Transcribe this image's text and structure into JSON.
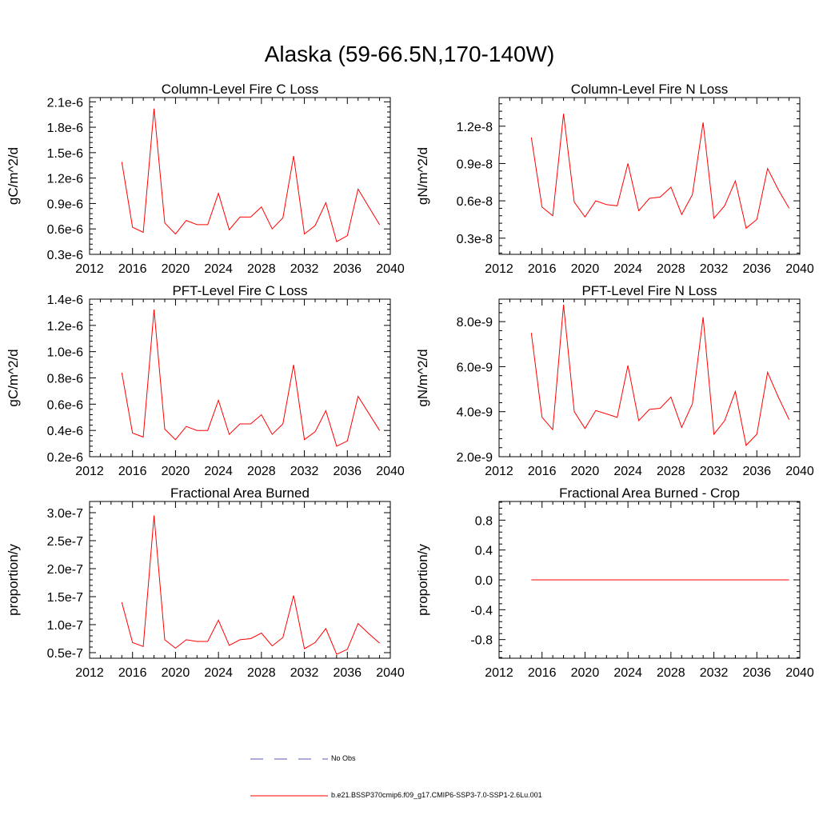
{
  "title": "Alaska (59-66.5N,170-140W)",
  "legend": {
    "obs_label": "No Obs",
    "model_label": "b.e21.BSSP370cmip6.f09_g17.CMIP6-SSP3-7.0-SSP1-2.6Lu.001",
    "obs_color": "#5a5ab4",
    "model_color": "#ff0000"
  },
  "chart_data": [
    {
      "type": "line",
      "title": "Column-Level Fire C Loss",
      "ylabel": "gC/m^2/d",
      "xlim": [
        2012,
        2040
      ],
      "ylim": [
        3e-07,
        2.15e-06
      ],
      "xticks": [
        2012,
        2016,
        2020,
        2024,
        2028,
        2032,
        2036,
        2040
      ],
      "xtick_labels": [
        "2012",
        "2016",
        "2020",
        "2024",
        "2028",
        "2032",
        "2036",
        "2040"
      ],
      "yticks": [
        3e-07,
        6e-07,
        9e-07,
        1.2e-06,
        1.5e-06,
        1.8e-06,
        2.1e-06
      ],
      "ytick_labels": [
        "0.3e-6",
        "0.6e-6",
        "0.9e-6",
        "1.2e-6",
        "1.5e-6",
        "1.8e-6",
        "2.1e-6"
      ],
      "x": [
        2015,
        2016,
        2017,
        2018,
        2019,
        2020,
        2021,
        2022,
        2023,
        2024,
        2025,
        2026,
        2027,
        2028,
        2029,
        2030,
        2031,
        2032,
        2033,
        2034,
        2035,
        2036,
        2037,
        2038,
        2039
      ],
      "series": [
        {
          "color": "#ff0000",
          "values": [
            1.39e-06,
            6.2e-07,
            5.6e-07,
            2.02e-06,
            6.7e-07,
            5.4e-07,
            7e-07,
            6.5e-07,
            6.5e-07,
            1.02e-06,
            5.9e-07,
            7.4e-07,
            7.4e-07,
            8.6e-07,
            6e-07,
            7.3e-07,
            1.46e-06,
            5.4e-07,
            6.4e-07,
            9.1e-07,
            4.5e-07,
            5.2e-07,
            1.07e-06,
            8.6e-07,
            6.5e-07
          ]
        }
      ]
    },
    {
      "type": "line",
      "title": "Column-Level Fire N Loss",
      "ylabel": "gN/m^2/d",
      "xlim": [
        2012,
        2040
      ],
      "ylim": [
        1.7e-09,
        1.43e-08
      ],
      "xticks": [
        2012,
        2016,
        2020,
        2024,
        2028,
        2032,
        2036,
        2040
      ],
      "xtick_labels": [
        "2012",
        "2016",
        "2020",
        "2024",
        "2028",
        "2032",
        "2036",
        "2040"
      ],
      "yticks": [
        3e-09,
        6e-09,
        9e-09,
        1.2e-08
      ],
      "ytick_labels": [
        "0.3e-8",
        "0.6e-8",
        "0.9e-8",
        "1.2e-8"
      ],
      "x": [
        2015,
        2016,
        2017,
        2018,
        2019,
        2020,
        2021,
        2022,
        2023,
        2024,
        2025,
        2026,
        2027,
        2028,
        2029,
        2030,
        2031,
        2032,
        2033,
        2034,
        2035,
        2036,
        2037,
        2038,
        2039
      ],
      "series": [
        {
          "color": "#ff0000",
          "values": [
            1.11e-08,
            5.5e-09,
            4.8e-09,
            1.3e-08,
            5.9e-09,
            4.7e-09,
            6e-09,
            5.7e-09,
            5.6e-09,
            9e-09,
            5.2e-09,
            6.2e-09,
            6.3e-09,
            7.1e-09,
            4.9e-09,
            6.5e-09,
            1.23e-08,
            4.6e-09,
            5.6e-09,
            7.6e-09,
            3.8e-09,
            4.5e-09,
            8.6e-09,
            6.9e-09,
            5.4e-09
          ]
        }
      ]
    },
    {
      "type": "line",
      "title": "PFT-Level Fire C Loss",
      "ylabel": "gC/m^2/d",
      "xlim": [
        2012,
        2040
      ],
      "ylim": [
        2e-07,
        1.4e-06
      ],
      "xticks": [
        2012,
        2016,
        2020,
        2024,
        2028,
        2032,
        2036,
        2040
      ],
      "xtick_labels": [
        "2012",
        "2016",
        "2020",
        "2024",
        "2028",
        "2032",
        "2036",
        "2040"
      ],
      "yticks": [
        2e-07,
        4e-07,
        6e-07,
        8e-07,
        1e-06,
        1.2e-06,
        1.4e-06
      ],
      "ytick_labels": [
        "0.2e-6",
        "0.4e-6",
        "0.6e-6",
        "0.8e-6",
        "1.0e-6",
        "1.2e-6",
        "1.4e-6"
      ],
      "x": [
        2015,
        2016,
        2017,
        2018,
        2019,
        2020,
        2021,
        2022,
        2023,
        2024,
        2025,
        2026,
        2027,
        2028,
        2029,
        2030,
        2031,
        2032,
        2033,
        2034,
        2035,
        2036,
        2037,
        2038,
        2039
      ],
      "series": [
        {
          "color": "#ff0000",
          "values": [
            8.4e-07,
            3.8e-07,
            3.5e-07,
            1.32e-06,
            4.1e-07,
            3.3e-07,
            4.3e-07,
            4e-07,
            4e-07,
            6.3e-07,
            3.7e-07,
            4.5e-07,
            4.5e-07,
            5.2e-07,
            3.7e-07,
            4.5e-07,
            9e-07,
            3.3e-07,
            3.9e-07,
            5.5e-07,
            2.8e-07,
            3.2e-07,
            6.6e-07,
            5.3e-07,
            4e-07
          ]
        }
      ]
    },
    {
      "type": "line",
      "title": "PFT-Level Fire N Loss",
      "ylabel": "gN/m^2/d",
      "xlim": [
        2012,
        2040
      ],
      "ylim": [
        2e-09,
        9e-09
      ],
      "xticks": [
        2012,
        2016,
        2020,
        2024,
        2028,
        2032,
        2036,
        2040
      ],
      "xtick_labels": [
        "2012",
        "2016",
        "2020",
        "2024",
        "2028",
        "2032",
        "2036",
        "2040"
      ],
      "yticks": [
        2e-09,
        4e-09,
        6e-09,
        8e-09
      ],
      "ytick_labels": [
        "2.0e-9",
        "4.0e-9",
        "6.0e-9",
        "8.0e-9"
      ],
      "x": [
        2015,
        2016,
        2017,
        2018,
        2019,
        2020,
        2021,
        2022,
        2023,
        2024,
        2025,
        2026,
        2027,
        2028,
        2029,
        2030,
        2031,
        2032,
        2033,
        2034,
        2035,
        2036,
        2037,
        2038,
        2039
      ],
      "series": [
        {
          "color": "#ff0000",
          "values": [
            7.5e-09,
            3.75e-09,
            3.2e-09,
            8.75e-09,
            4e-09,
            3.25e-09,
            4.05e-09,
            3.9e-09,
            3.75e-09,
            6.05e-09,
            3.6e-09,
            4.1e-09,
            4.15e-09,
            4.65e-09,
            3.3e-09,
            4.35e-09,
            8.2e-09,
            3e-09,
            3.6e-09,
            4.9e-09,
            2.5e-09,
            3e-09,
            5.75e-09,
            4.65e-09,
            3.65e-09
          ]
        }
      ]
    },
    {
      "type": "line",
      "title": "Fractional Area Burned",
      "ylabel": "proportion/y",
      "xlim": [
        2012,
        2040
      ],
      "ylim": [
        4e-08,
        3.2e-07
      ],
      "xticks": [
        2012,
        2016,
        2020,
        2024,
        2028,
        2032,
        2036,
        2040
      ],
      "xtick_labels": [
        "2012",
        "2016",
        "2020",
        "2024",
        "2028",
        "2032",
        "2036",
        "2040"
      ],
      "yticks": [
        5e-08,
        1e-07,
        1.5e-07,
        2e-07,
        2.5e-07,
        3e-07
      ],
      "ytick_labels": [
        "0.5e-7",
        "1.0e-7",
        "1.5e-7",
        "2.0e-7",
        "2.5e-7",
        "3.0e-7"
      ],
      "x": [
        2015,
        2016,
        2017,
        2018,
        2019,
        2020,
        2021,
        2022,
        2023,
        2024,
        2025,
        2026,
        2027,
        2028,
        2029,
        2030,
        2031,
        2032,
        2033,
        2034,
        2035,
        2036,
        2037,
        2038,
        2039
      ],
      "series": [
        {
          "color": "#ff0000",
          "values": [
            1.4e-07,
            6.8e-08,
            6.1e-08,
            2.95e-07,
            7.3e-08,
            5.8e-08,
            7.3e-08,
            7e-08,
            7e-08,
            1.08e-07,
            6.3e-08,
            7.3e-08,
            7.5e-08,
            8.5e-08,
            6.2e-08,
            7.7e-08,
            1.52e-07,
            5.7e-08,
            6.8e-08,
            9.3e-08,
            4.7e-08,
            5.6e-08,
            1.02e-07,
            8.4e-08,
            6.7e-08
          ]
        }
      ]
    },
    {
      "type": "line",
      "title": "Fractional Area Burned - Crop",
      "ylabel": "proportion/y",
      "xlim": [
        2012,
        2040
      ],
      "ylim": [
        -1.05,
        1.05
      ],
      "xticks": [
        2012,
        2016,
        2020,
        2024,
        2028,
        2032,
        2036,
        2040
      ],
      "xtick_labels": [
        "2012",
        "2016",
        "2020",
        "2024",
        "2028",
        "2032",
        "2036",
        "2040"
      ],
      "yticks": [
        -0.8,
        -0.4,
        0.0,
        0.4,
        0.8
      ],
      "ytick_labels": [
        "-0.8",
        "-0.4",
        "0.0",
        "0.4",
        "0.8"
      ],
      "x": [
        2015,
        2016,
        2017,
        2018,
        2019,
        2020,
        2021,
        2022,
        2023,
        2024,
        2025,
        2026,
        2027,
        2028,
        2029,
        2030,
        2031,
        2032,
        2033,
        2034,
        2035,
        2036,
        2037,
        2038,
        2039
      ],
      "series": [
        {
          "color": "#ff0000",
          "values": [
            0,
            0,
            0,
            0,
            0,
            0,
            0,
            0,
            0,
            0,
            0,
            0,
            0,
            0,
            0,
            0,
            0,
            0,
            0,
            0,
            0,
            0,
            0,
            0,
            0
          ]
        }
      ]
    }
  ]
}
